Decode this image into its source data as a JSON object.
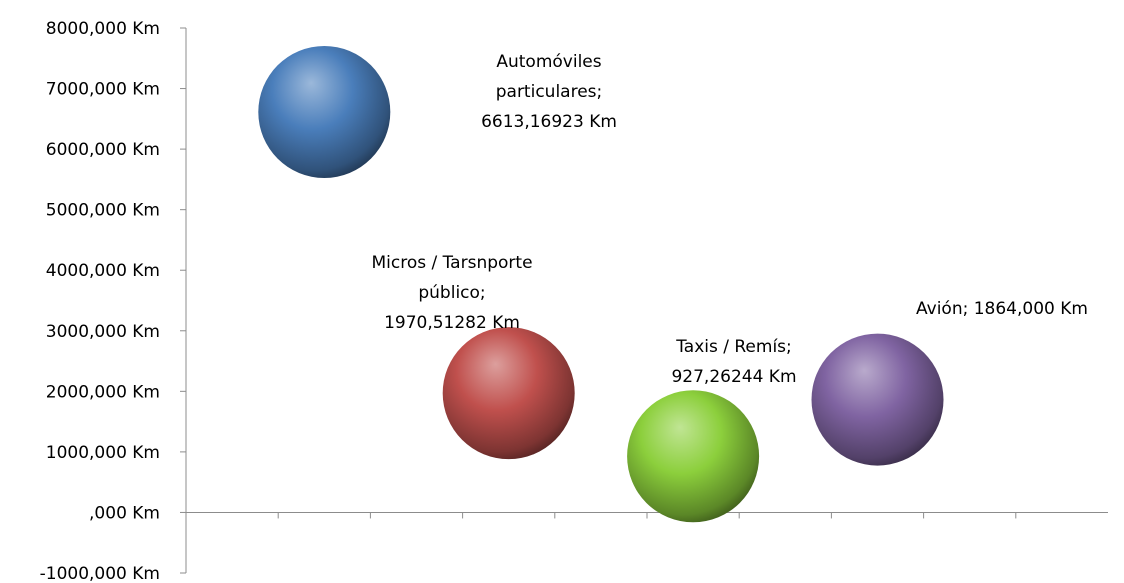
{
  "chart_data": {
    "type": "bubble",
    "title": "",
    "xlabel": "",
    "ylabel": "",
    "ylim": [
      -1000,
      8000
    ],
    "y_step": 1000,
    "y_tick_labels": [
      "-1000,000 Km",
      ",000 Km",
      "1000,000 Km",
      "2000,000 Km",
      "3000,000 Km",
      "4000,000 Km",
      "5000,000 Km",
      "6000,000 Km",
      "7000,000 Km",
      "8000,000 Km"
    ],
    "x_categories": 10,
    "grid": false,
    "legend": "none",
    "points": [
      {
        "name": "Automóviles particulares",
        "x": 2,
        "y": 6613.16923,
        "color": "#4a7ebb",
        "label_lines": [
          "Automóviles",
          "particulares;",
          "6613,16923 Km"
        ]
      },
      {
        "name": "Micros / Tarsnporte público",
        "x": 4,
        "y": 1970.51282,
        "color": "#c0504d",
        "label_lines": [
          "Micros / Tarsnporte",
          "público;",
          "1970,51282 Km"
        ]
      },
      {
        "name": "Taxis / Remís",
        "x": 6,
        "y": 927.26244,
        "color": "#8ccf3c",
        "label_lines": [
          "Taxis / Remís;",
          "927,26244 Km"
        ]
      },
      {
        "name": "Avión",
        "x": 8,
        "y": 1864.0,
        "color": "#8064a2",
        "label_lines": [
          "Avión; 1864,000 Km"
        ]
      }
    ]
  }
}
